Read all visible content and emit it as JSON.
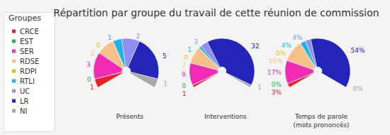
{
  "title": "Répartition par groupe du travail de cette réunion de commission",
  "legend_title": "Groupes",
  "chart_data": [
    {
      "type": "pie",
      "title": "Présents",
      "categories": [
        "CRCE",
        "EST",
        "SER",
        "RDSE",
        "RDPI",
        "RTLI",
        "UC",
        "LR",
        "NI"
      ],
      "values": [
        1,
        0,
        3,
        2,
        0,
        1,
        2,
        5,
        1
      ],
      "colors": [
        "#e8202a",
        "#27b844",
        "#f02cb4",
        "#f9c08a",
        "#e6c600",
        "#20b4e6",
        "#8f8ff0",
        "#2424b8",
        "#a8a8a8"
      ],
      "data_labels": true
    },
    {
      "type": "pie",
      "title": "Interventions",
      "categories": [
        "CRCE",
        "EST",
        "SER",
        "RDSE",
        "RDPI",
        "RTLI",
        "UC",
        "LR",
        "NI"
      ],
      "values": [
        1,
        0,
        9,
        7,
        0,
        1,
        3,
        32,
        1
      ],
      "colors": [
        "#e8202a",
        "#27b844",
        "#f02cb4",
        "#f9c08a",
        "#e6c600",
        "#20b4e6",
        "#8f8ff0",
        "#2424b8",
        "#a8a8a8"
      ],
      "data_labels": true
    },
    {
      "type": "pie",
      "title": "Temps de parole\n(mots prononcés)",
      "categories": [
        "CRCE",
        "EST",
        "SER",
        "RDSE",
        "RDPI",
        "RTLI",
        "UC",
        "LR",
        "NI"
      ],
      "values": [
        3,
        0,
        17,
        16,
        0,
        4,
        4,
        54,
        0
      ],
      "value_labels": [
        "3%",
        "0%",
        "17%",
        "16%",
        "0%",
        "4%",
        "4%",
        "54%",
        "0%"
      ],
      "colors": [
        "#e8202a",
        "#27b844",
        "#f02cb4",
        "#f9c08a",
        "#e6c600",
        "#20b4e6",
        "#8f8ff0",
        "#2424b8",
        "#a8a8a8"
      ],
      "data_labels": true
    }
  ]
}
